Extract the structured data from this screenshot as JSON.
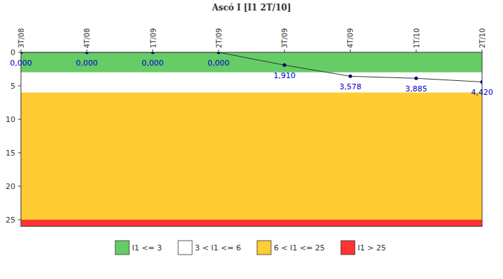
{
  "chart_data": {
    "type": "line",
    "title": "Ascó I [I1 2T/10]",
    "categories": [
      "3T/08",
      "4T/08",
      "1T/09",
      "2T/09",
      "3T/09",
      "4T/09",
      "1T/10",
      "2T/10"
    ],
    "series": [
      {
        "name": "I1",
        "color": "#333333",
        "marker": "circle",
        "line_style": "solid",
        "values": [
          0,
          0,
          0,
          0,
          1.91,
          3.578,
          3.885,
          4.42
        ],
        "value_labels": [
          "0,000",
          "0,000",
          "0,000",
          "0,000",
          "1,910",
          "3,578",
          "3,885",
          "4,420"
        ]
      }
    ],
    "ylim": [
      26,
      0
    ],
    "yticks": [
      0,
      5,
      10,
      15,
      20,
      25
    ],
    "data_labels": true,
    "legend": "bottom",
    "grid": false,
    "bands": [
      {
        "name": "I1 <= 3",
        "from": 0,
        "to": 3,
        "color": "#66cc66"
      },
      {
        "name": "3 < I1 <= 6",
        "from": 3,
        "to": 6,
        "color": "#ffffff"
      },
      {
        "name": "6 < I1 <= 25",
        "from": 6,
        "to": 25,
        "color": "#ffcc33"
      },
      {
        "name": "I1 > 25",
        "from": 25,
        "to": 26,
        "color": "#ff3333"
      }
    ]
  }
}
